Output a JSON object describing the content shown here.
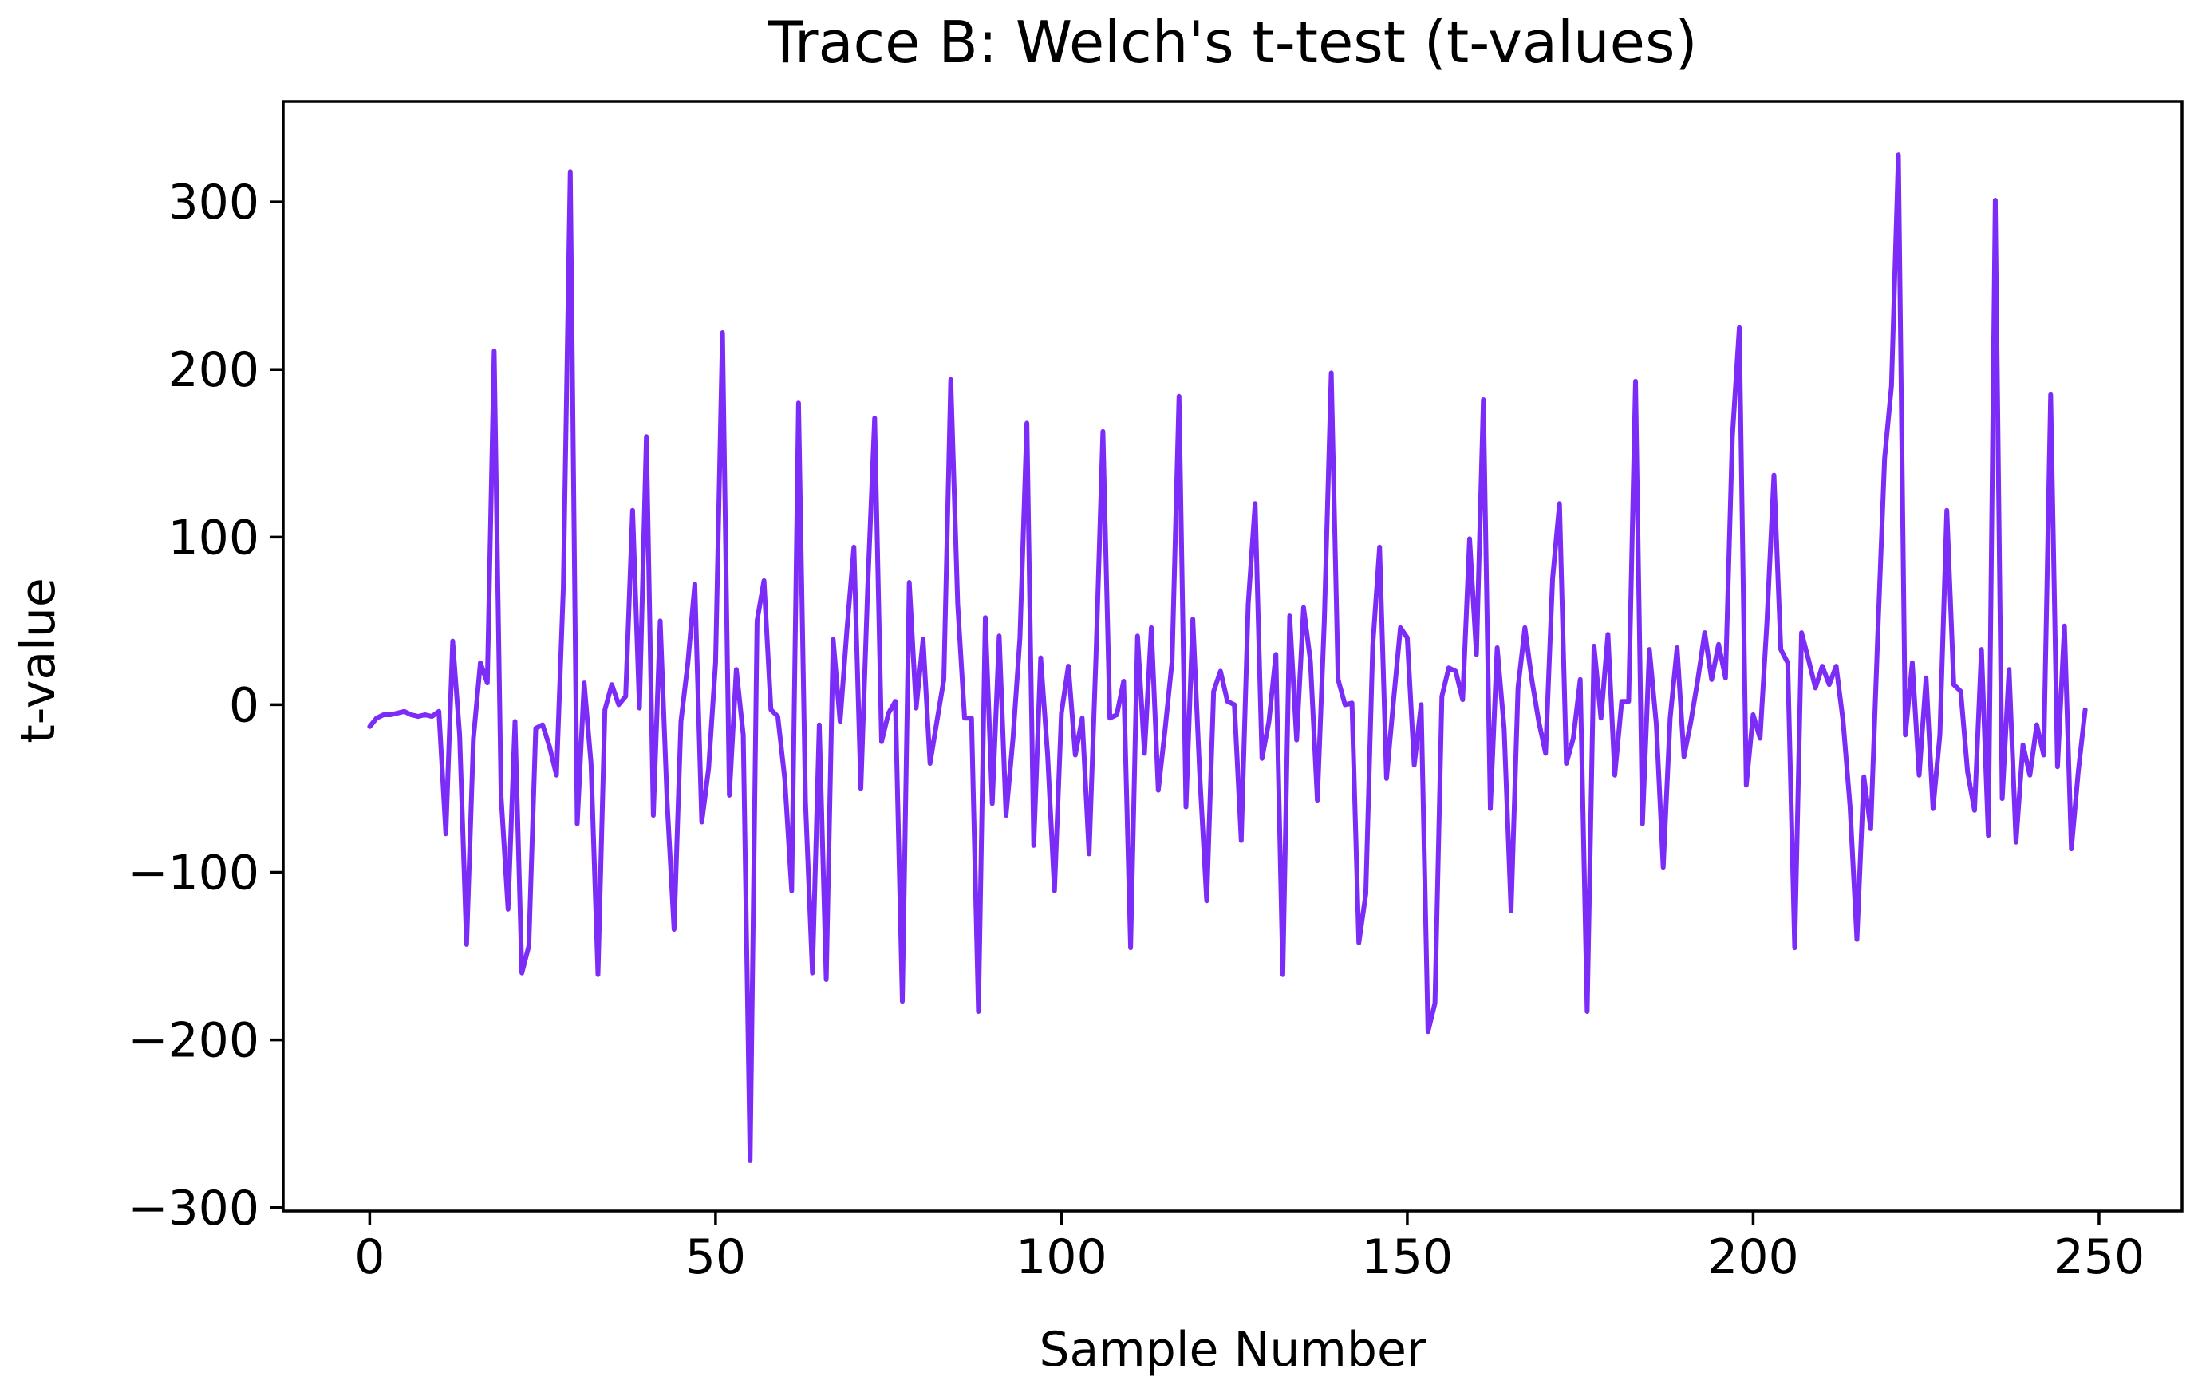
{
  "chart_data": {
    "type": "line",
    "title": "Trace B: Welch's t-test (t-values)",
    "xlabel": "Sample Number",
    "ylabel": "t-value",
    "xlim": [
      -12.5,
      262
    ],
    "ylim": [
      -302,
      360
    ],
    "x_ticks": [
      0,
      50,
      100,
      150,
      200,
      250
    ],
    "y_ticks": [
      -300,
      -200,
      -100,
      0,
      100,
      200,
      300
    ],
    "x_tick_labels": [
      "0",
      "50",
      "100",
      "150",
      "200",
      "250"
    ],
    "y_tick_labels": [
      "−300",
      "−200",
      "−100",
      "0",
      "100",
      "200",
      "300"
    ],
    "grid": false,
    "legend": "none",
    "series": [
      {
        "color": "#7b2cf6",
        "x_start": 0,
        "x_step": 1,
        "values": [
          -13,
          -8,
          -6,
          -6,
          -5,
          -4,
          -6,
          -7,
          -6,
          -7,
          -4,
          -77,
          38,
          -18,
          -143,
          -20,
          25,
          13,
          211,
          -55,
          -122,
          -10,
          -160,
          -144,
          -14,
          -12,
          -25,
          -42,
          70,
          318,
          -71,
          13,
          -35,
          -161,
          -3,
          12,
          0,
          5,
          116,
          -2,
          160,
          -66,
          50,
          -58,
          -134,
          -10,
          25,
          72,
          -70,
          -38,
          25,
          222,
          -54,
          21,
          -18,
          -272,
          50,
          74,
          -3,
          -7,
          -44,
          -111,
          180,
          -58,
          -160,
          -12,
          -164,
          39,
          -10,
          45,
          94,
          -50,
          70,
          171,
          -22,
          -5,
          2,
          -177,
          73,
          -2,
          39,
          -35,
          -10,
          15,
          194,
          60,
          -8,
          -8,
          -183,
          52,
          -59,
          41,
          -66,
          -20,
          40,
          168,
          -84,
          28,
          -30,
          -111,
          -5,
          23,
          -30,
          -8,
          -89,
          30,
          163,
          -8,
          -6,
          14,
          -145,
          41,
          -29,
          46,
          -51,
          -14,
          26,
          184,
          -61,
          51,
          -42,
          -117,
          8,
          20,
          2,
          0,
          -81,
          60,
          120,
          -32,
          -10,
          30,
          -161,
          53,
          -21,
          58,
          26,
          -57,
          50,
          198,
          15,
          0,
          1,
          -142,
          -113,
          35,
          94,
          -44,
          2,
          46,
          40,
          -36,
          0,
          -195,
          -178,
          5,
          22,
          20,
          3,
          99,
          30,
          182,
          -62,
          34,
          -14,
          -123,
          10,
          46,
          15,
          -10,
          -29,
          75,
          120,
          -35,
          -20,
          15,
          -183,
          35,
          -8,
          42,
          -42,
          2,
          2,
          193,
          -71,
          33,
          -12,
          -97,
          -8,
          34,
          -31,
          -10,
          15,
          43,
          15,
          36,
          16,
          160,
          225,
          -48,
          -6,
          -20,
          50,
          137,
          33,
          25,
          -145,
          43,
          27,
          10,
          23,
          12,
          23,
          -10,
          -60,
          -140,
          -43,
          -74,
          40,
          147,
          190,
          328,
          -18,
          25,
          -42,
          16,
          -62,
          -18,
          116,
          12,
          8,
          -40,
          -63,
          33,
          -78,
          301,
          -56,
          21,
          -82,
          -24,
          -42,
          -12,
          -30,
          185,
          -37,
          47,
          -86,
          -40,
          -3
        ]
      }
    ]
  }
}
